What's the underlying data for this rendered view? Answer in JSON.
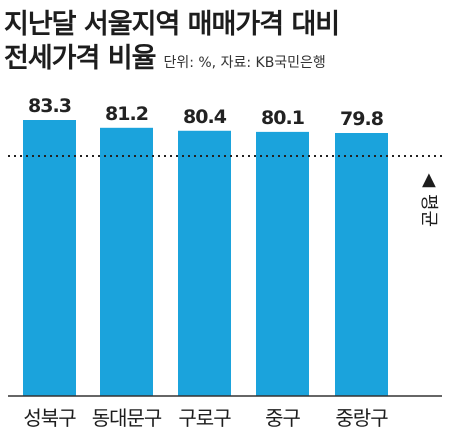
{
  "chart_data": {
    "type": "bar",
    "title_line1": "지난달 서울지역 매매가격 대비",
    "title_line2": "전세가격 비율",
    "subtitle": "단위: %, 자료:  KB국민은행",
    "categories": [
      "성북구",
      "동대문구",
      "구로구",
      "중구",
      "중랑구"
    ],
    "values": [
      83.3,
      81.2,
      80.4,
      80.1,
      79.8
    ],
    "value_labels": [
      "83.3",
      "81.2",
      "80.4",
      "80.1",
      "79.8"
    ],
    "average_label": "평균",
    "average_marker": "▲",
    "grid": false,
    "colors": {
      "bar": "#1ba3dc",
      "axis": "#333333",
      "average_line": "#222222"
    }
  }
}
